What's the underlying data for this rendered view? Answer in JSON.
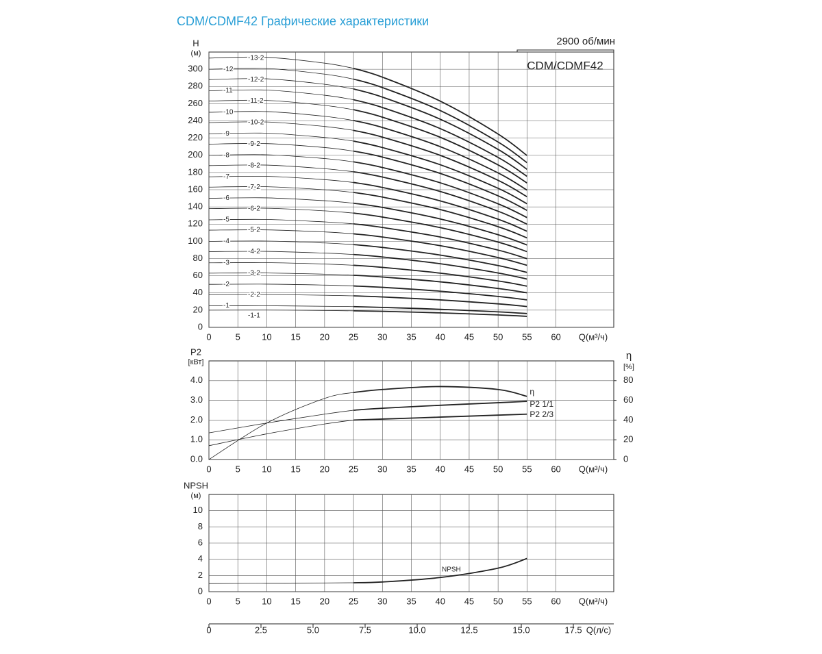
{
  "title": "CDM/CDMF42 Графические характеристики",
  "speed": "2900 об/мин",
  "model": "CDM/CDMF42",
  "chart_data": [
    {
      "type": "line",
      "ylabel": [
        "H",
        "(м)"
      ],
      "xlabel": "Q(м³/ч)",
      "xlim": [
        0,
        70
      ],
      "xticks": [
        0,
        5,
        10,
        15,
        20,
        25,
        30,
        35,
        40,
        45,
        50,
        55,
        60
      ],
      "ylim": [
        0,
        320
      ],
      "yticks": [
        0,
        20,
        40,
        60,
        80,
        100,
        120,
        140,
        160,
        180,
        200,
        220,
        240,
        260,
        280,
        300
      ],
      "grid": true,
      "x": [
        0,
        10,
        20,
        25,
        30,
        40,
        50,
        55
      ],
      "series": [
        {
          "name": "-1-1",
          "color": "#222",
          "values": [
            20,
            20.1,
            19.6,
            19.2,
            18.6,
            16.8,
            14.4,
            12.8
          ]
        },
        {
          "name": "-1",
          "color": "#222",
          "values": [
            25,
            25.1,
            24.5,
            24.1,
            23.2,
            21,
            18,
            16
          ]
        },
        {
          "name": "-2-2",
          "color": "#222",
          "values": [
            38,
            38.1,
            37.3,
            36.6,
            35.3,
            31.9,
            27.3,
            24.2
          ]
        },
        {
          "name": "-2",
          "color": "#222",
          "values": [
            50,
            50.2,
            49.1,
            48.1,
            46.5,
            42,
            35.9,
            31.9
          ]
        },
        {
          "name": "-3-2",
          "color": "#222",
          "values": [
            63,
            63.2,
            61.8,
            60.6,
            58.5,
            52.9,
            45.2,
            40.2
          ]
        },
        {
          "name": "-3",
          "color": "#222",
          "values": [
            75,
            75.2,
            73.6,
            72.2,
            69.7,
            63,
            53.9,
            47.9
          ]
        },
        {
          "name": "-4-2",
          "color": "#222",
          "values": [
            88,
            88.3,
            86.3,
            84.7,
            81.8,
            73.9,
            63.2,
            56.1
          ]
        },
        {
          "name": "-4",
          "color": "#222",
          "values": [
            100,
            100.3,
            98.1,
            96.2,
            92.9,
            84,
            71.8,
            63.8
          ]
        },
        {
          "name": "-5-2",
          "color": "#222",
          "values": [
            113,
            113.3,
            110.9,
            108.7,
            105,
            94.9,
            81.1,
            72.1
          ]
        },
        {
          "name": "-5",
          "color": "#222",
          "values": [
            125,
            125.4,
            122.6,
            120.3,
            116.1,
            105,
            89.8,
            79.8
          ]
        },
        {
          "name": "-6-2",
          "color": "#222",
          "values": [
            138,
            138.4,
            135.4,
            132.8,
            128.2,
            115.9,
            99.1,
            88
          ]
        },
        {
          "name": "-6",
          "color": "#222",
          "values": [
            150,
            150.5,
            147.2,
            144.3,
            139.4,
            126,
            107.7,
            95.7
          ]
        },
        {
          "name": "-7-2",
          "color": "#222",
          "values": [
            163,
            163.5,
            159.9,
            156.8,
            151.4,
            136.9,
            117,
            104
          ]
        },
        {
          "name": "-7",
          "color": "#222",
          "values": [
            175,
            175.5,
            171.7,
            168.4,
            162.6,
            147,
            125.7,
            111.7
          ]
        },
        {
          "name": "-8-2",
          "color": "#222",
          "values": [
            188,
            188.6,
            184.4,
            180.9,
            174.7,
            157.9,
            135,
            119.9
          ]
        },
        {
          "name": "-8",
          "color": "#222",
          "values": [
            200,
            200.6,
            196.2,
            192.4,
            185.8,
            168,
            143.6,
            127.6
          ]
        },
        {
          "name": "-9-2",
          "color": "#222",
          "values": [
            213,
            213.6,
            209,
            204.9,
            197.9,
            178.9,
            152.9,
            135.9
          ]
        },
        {
          "name": "-9",
          "color": "#222",
          "values": [
            225,
            225.7,
            220.7,
            216.5,
            209,
            189,
            161.6,
            143.6
          ]
        },
        {
          "name": "-10-2",
          "color": "#222",
          "values": [
            238,
            238.7,
            233.5,
            229,
            221.1,
            199.9,
            170.9,
            151.8
          ]
        },
        {
          "name": "-10",
          "color": "#222",
          "values": [
            250,
            250.8,
            245.3,
            240.5,
            232.3,
            210,
            179.5,
            159.5
          ]
        },
        {
          "name": "-11-2",
          "color": "#222",
          "values": [
            263,
            263.8,
            258,
            253,
            244.3,
            220.9,
            188.8,
            167.8
          ]
        },
        {
          "name": "-11",
          "color": "#222",
          "values": [
            275,
            275.8,
            269.8,
            264.6,
            255.5,
            231,
            197.5,
            175.5
          ]
        },
        {
          "name": "-12-2",
          "color": "#222",
          "values": [
            288,
            288.9,
            282.5,
            277.1,
            267.6,
            241.9,
            206.8,
            183.7
          ]
        },
        {
          "name": "-12",
          "color": "#222",
          "values": [
            300,
            300.9,
            294.3,
            288.6,
            278.7,
            252,
            215.4,
            191.4
          ]
        },
        {
          "name": "-13-2",
          "color": "#222",
          "values": [
            313,
            313.9,
            307.1,
            301.1,
            290.8,
            262.9,
            224.7,
            199.7
          ]
        }
      ]
    },
    {
      "type": "line",
      "ylabel": [
        "P2",
        "[кВт]"
      ],
      "y2label": [
        "η",
        "[%]"
      ],
      "xlabel": "Q(м³/ч)",
      "xlim": [
        0,
        70
      ],
      "xticks": [
        0,
        5,
        10,
        15,
        20,
        25,
        30,
        35,
        40,
        45,
        50,
        55,
        60
      ],
      "ylim": [
        0,
        5
      ],
      "yticks": [
        {
          "value": 0,
          "label": "0.0"
        },
        {
          "value": 1,
          "label": "1.0"
        },
        {
          "value": 2,
          "label": "2.0"
        },
        {
          "value": 3,
          "label": "3.0"
        },
        {
          "value": 4,
          "label": "4.0"
        }
      ],
      "y2lim": [
        0,
        100
      ],
      "y2ticks": [
        0,
        20,
        40,
        60,
        80
      ],
      "grid": true,
      "x": [
        0,
        10,
        20,
        25,
        30,
        40,
        50,
        55
      ],
      "series": [
        {
          "name": "η",
          "color": "#222",
          "axis": "y2",
          "values": [
            0,
            37,
            62,
            68,
            71,
            74,
            71,
            64
          ]
        },
        {
          "name": "P2 1/1",
          "color": "#222",
          "values": [
            1.35,
            1.85,
            2.3,
            2.5,
            2.6,
            2.75,
            2.88,
            2.95
          ]
        },
        {
          "name": "P2 2/3",
          "color": "#222",
          "values": [
            0.7,
            1.3,
            1.8,
            2.0,
            2.05,
            2.15,
            2.25,
            2.3
          ]
        }
      ]
    },
    {
      "type": "line",
      "ylabel": [
        "NPSH",
        "(м)"
      ],
      "xlabel": "Q(м³/ч)",
      "xlim": [
        0,
        70
      ],
      "xticks": [
        0,
        5,
        10,
        15,
        20,
        25,
        30,
        35,
        40,
        45,
        50,
        55,
        60
      ],
      "ylim": [
        0,
        12
      ],
      "yticks": [
        0,
        2,
        4,
        6,
        8,
        10
      ],
      "grid": true,
      "x": [
        0,
        10,
        20,
        25,
        30,
        40,
        50,
        55
      ],
      "series": [
        {
          "name": "NPSH",
          "color": "#222",
          "values": [
            1.0,
            1.05,
            1.08,
            1.1,
            1.2,
            1.75,
            2.9,
            4.1
          ]
        }
      ],
      "x2label": "Q(л/с)",
      "x2lim": [
        0,
        19.44
      ],
      "x2ticks": [
        0,
        2.5,
        {
          "value": 5,
          "label": "5.0"
        },
        7.5,
        {
          "value": 10,
          "label": "10.0"
        },
        12.5,
        {
          "value": 15,
          "label": "15.0"
        },
        17.5
      ]
    }
  ]
}
